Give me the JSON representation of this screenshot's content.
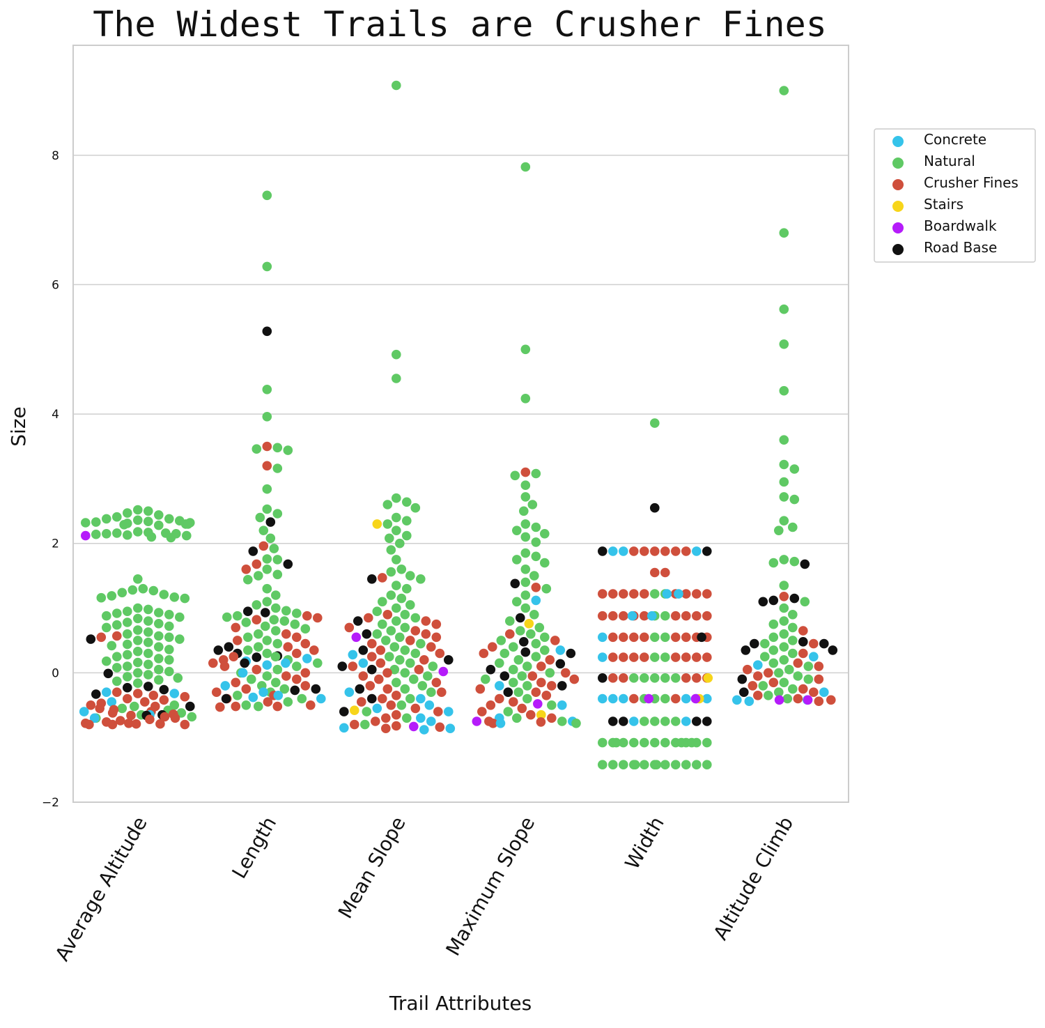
{
  "chart_data": {
    "type": "scatter",
    "subtype": "swarm",
    "title": "The Widest Trails are Crusher Fines",
    "xlabel": "Trail Attributes",
    "ylabel": "Size",
    "categories": [
      "Average Altitude",
      "Length",
      "Mean Slope",
      "Maximum Slope",
      "Width",
      "Altitude Climb"
    ],
    "ylim": [
      -2,
      9.7
    ],
    "yticks": [
      -2,
      0,
      2,
      4,
      6,
      8
    ],
    "grid": "horizontal",
    "legend_position": "right",
    "legend": [
      {
        "name": "Concrete",
        "color": "#35c3ea"
      },
      {
        "name": "Natural",
        "color": "#5fc964"
      },
      {
        "name": "Crusher Fines",
        "color": "#cf4f3c"
      },
      {
        "name": "Stairs",
        "color": "#f7d51a"
      },
      {
        "name": "Boardwalk",
        "color": "#b51cfa"
      },
      {
        "name": "Road Base",
        "color": "#111111"
      }
    ],
    "points": {
      "Average Altitude": {
        "Natural": [
          2.38,
          2.35,
          2.33,
          2.32,
          2.31,
          2.3,
          2.3,
          2.29,
          2.28,
          2.52,
          2.5,
          2.47,
          2.44,
          2.41,
          2.38,
          2.36,
          2.34,
          2.32,
          2.18,
          2.17,
          2.16,
          2.16,
          2.15,
          2.15,
          2.14,
          2.13,
          2.12,
          2.1,
          2.09,
          1.45,
          1.3,
          1.28,
          1.27,
          1.24,
          1.21,
          1.19,
          1.17,
          1.16,
          1.15,
          1.0,
          0.98,
          0.95,
          0.93,
          0.92,
          0.9,
          0.88,
          0.86,
          0.84,
          0.8,
          0.78,
          0.76,
          0.74,
          0.72,
          0.7,
          0.66,
          0.63,
          0.6,
          0.57,
          0.55,
          0.52,
          0.5,
          0.47,
          0.44,
          0.42,
          0.4,
          0.36,
          0.33,
          0.3,
          0.28,
          0.25,
          0.22,
          0.2,
          0.18,
          0.16,
          0.13,
          0.1,
          0.08,
          0.05,
          0.02,
          0.0,
          -0.03,
          -0.06,
          -0.08,
          -0.11,
          -0.13,
          -0.16,
          -0.5,
          -0.52,
          -0.55,
          -0.58,
          -0.62,
          -0.65,
          -0.68,
          -0.7
        ],
        "Crusher Fines": [
          0.57,
          0.55,
          -0.3,
          -0.32,
          -0.35,
          -0.37,
          -0.4,
          -0.42,
          -0.45,
          -0.47,
          -0.5,
          -0.52,
          -0.55,
          -0.57,
          -0.6,
          -0.62,
          -0.64,
          -0.66,
          -0.68,
          -0.7,
          -0.72,
          -0.74,
          -0.76,
          -0.78,
          -0.78,
          -0.79,
          -0.79,
          -0.8,
          -0.8,
          -0.8
        ],
        "Concrete": [
          -0.3,
          -0.32,
          -0.45,
          -0.6,
          -0.65,
          -0.7
        ],
        "Boardwalk": [
          2.12
        ],
        "Road Base": [
          0.52,
          -0.01,
          -0.21,
          -0.23,
          -0.26,
          -0.33,
          -0.52,
          -0.65,
          -0.66
        ]
      },
      "Length": {
        "Natural": [
          7.38,
          6.28,
          4.38,
          3.96,
          3.48,
          3.46,
          3.44,
          3.16,
          2.84,
          2.53,
          2.46,
          2.4,
          2.2,
          2.08,
          1.92,
          1.76,
          1.75,
          1.6,
          1.52,
          1.5,
          1.44,
          1.3,
          1.2,
          1.1,
          1.05,
          1.0,
          0.96,
          0.92,
          0.88,
          0.86,
          0.82,
          0.8,
          0.78,
          0.75,
          0.72,
          0.68,
          0.65,
          0.6,
          0.55,
          0.5,
          0.45,
          0.4,
          0.35,
          0.3,
          0.25,
          0.2,
          0.15,
          0.1,
          0.05,
          0.0,
          -0.05,
          -0.1,
          -0.15,
          -0.2,
          -0.25,
          -0.3,
          -0.35,
          -0.4,
          -0.45,
          -0.5,
          -0.52
        ],
        "Crusher Fines": [
          3.5,
          3.2,
          1.96,
          1.68,
          1.6,
          0.88,
          0.85,
          0.82,
          0.7,
          0.6,
          0.55,
          0.5,
          0.45,
          0.4,
          0.35,
          0.3,
          0.25,
          0.2,
          0.15,
          0.1,
          0.05,
          0.0,
          -0.05,
          -0.1,
          -0.15,
          -0.2,
          -0.25,
          -0.3,
          -0.35,
          -0.4,
          -0.45,
          -0.5,
          -0.52,
          -0.52,
          -0.53
        ],
        "Concrete": [
          0.22,
          0.18,
          0.15,
          0.12,
          0.0,
          -0.2,
          -0.3,
          -0.35,
          -0.38,
          -0.4
        ],
        "Road Base": [
          5.28,
          2.33,
          1.88,
          1.68,
          0.95,
          0.93,
          0.4,
          0.35,
          0.3,
          0.26,
          0.24,
          0.15,
          -0.25,
          -0.27,
          -0.4
        ]
      },
      "Mean Slope": {
        "Natural": [
          9.08,
          4.92,
          4.55,
          2.7,
          2.64,
          2.6,
          2.55,
          2.4,
          2.35,
          2.3,
          2.2,
          2.12,
          2.08,
          2.0,
          1.9,
          1.75,
          1.6,
          1.56,
          1.5,
          1.45,
          1.35,
          1.3,
          1.2,
          1.15,
          1.1,
          1.05,
          1.0,
          0.95,
          0.9,
          0.85,
          0.8,
          0.75,
          0.7,
          0.65,
          0.6,
          0.55,
          0.5,
          0.45,
          0.4,
          0.35,
          0.3,
          0.25,
          0.2,
          0.15,
          0.1,
          0.05,
          0.0,
          -0.05,
          -0.1,
          -0.15,
          -0.2,
          -0.25,
          -0.3,
          -0.4,
          -0.5,
          -0.6,
          -0.7,
          -0.8
        ],
        "Crusher Fines": [
          1.47,
          0.9,
          0.85,
          0.8,
          0.75,
          0.7,
          0.65,
          0.6,
          0.55,
          0.5,
          0.45,
          0.4,
          0.35,
          0.3,
          0.25,
          0.2,
          0.15,
          0.1,
          0.05,
          0.0,
          -0.05,
          -0.1,
          -0.15,
          -0.2,
          -0.25,
          -0.3,
          -0.35,
          -0.4,
          -0.45,
          -0.5,
          -0.55,
          -0.6,
          -0.65,
          -0.7,
          -0.75,
          -0.8,
          -0.82,
          -0.84,
          -0.86
        ],
        "Concrete": [
          0.28,
          0.15,
          -0.3,
          -0.4,
          -0.5,
          -0.55,
          -0.6,
          -0.7,
          -0.75,
          -0.85,
          -0.86,
          -0.88
        ],
        "Stairs": [
          2.3,
          -0.58
        ],
        "Boardwalk": [
          0.55,
          0.02,
          -0.83
        ],
        "Road Base": [
          1.45,
          0.8,
          0.6,
          0.35,
          0.2,
          0.1,
          0.05,
          -0.25,
          -0.4,
          -0.6
        ]
      },
      "Maximum Slope": {
        "Natural": [
          7.82,
          5.0,
          4.24,
          3.08,
          3.05,
          2.9,
          2.72,
          2.6,
          2.5,
          2.3,
          2.25,
          2.2,
          2.15,
          2.1,
          2.02,
          1.85,
          1.8,
          1.75,
          1.7,
          1.6,
          1.5,
          1.4,
          1.3,
          1.2,
          1.1,
          1.0,
          0.9,
          0.8,
          0.7,
          0.65,
          0.6,
          0.55,
          0.5,
          0.45,
          0.4,
          0.35,
          0.3,
          0.25,
          0.2,
          0.15,
          0.1,
          0.05,
          0.0,
          -0.05,
          -0.1,
          -0.15,
          -0.2,
          -0.3,
          -0.4,
          -0.5,
          -0.6,
          -0.7,
          -0.75,
          -0.78
        ],
        "Crusher Fines": [
          3.1,
          1.32,
          0.6,
          0.5,
          0.4,
          0.3,
          0.2,
          0.1,
          0.0,
          -0.05,
          -0.1,
          -0.15,
          -0.2,
          -0.25,
          -0.3,
          -0.35,
          -0.4,
          -0.45,
          -0.5,
          -0.55,
          -0.6,
          -0.65,
          -0.7,
          -0.75,
          -0.76,
          -0.78
        ],
        "Concrete": [
          1.12,
          0.35,
          -0.2,
          -0.5,
          -0.7,
          -0.75,
          -0.78
        ],
        "Stairs": [
          0.76,
          -0.65
        ],
        "Boardwalk": [
          -0.48,
          -0.75
        ],
        "Road Base": [
          1.38,
          0.85,
          0.48,
          0.32,
          0.3,
          0.14,
          0.05,
          -0.05,
          -0.2,
          -0.3
        ]
      },
      "Width": {
        "Natural": [
          3.86,
          -0.08,
          -0.08,
          -0.08,
          -0.08,
          -0.08,
          -0.4,
          -0.4,
          -0.4,
          -0.75,
          -0.75,
          -0.75,
          -0.75,
          -1.08,
          -1.08,
          -1.08,
          -1.08,
          -1.08,
          -1.08,
          -1.08,
          -1.08,
          -1.08,
          -1.08,
          -1.08,
          -1.08,
          -1.08,
          -1.08,
          -1.42,
          -1.42,
          -1.42,
          -1.42,
          -1.42,
          -1.42,
          -1.42,
          -1.42,
          -1.42,
          -1.42,
          -1.42,
          -1.42,
          -1.42,
          0.24,
          0.24,
          0.55,
          0.55,
          0.88,
          0.88,
          1.22,
          1.22
        ],
        "Crusher Fines": [
          1.88,
          1.88,
          1.88,
          1.88,
          1.88,
          1.88,
          1.55,
          1.55,
          1.22,
          1.22,
          1.22,
          1.22,
          1.22,
          1.22,
          1.22,
          1.22,
          1.22,
          0.88,
          0.88,
          0.88,
          0.88,
          0.88,
          0.88,
          0.88,
          0.88,
          0.88,
          0.55,
          0.55,
          0.55,
          0.55,
          0.55,
          0.55,
          0.55,
          0.55,
          0.24,
          0.24,
          0.24,
          0.24,
          0.24,
          0.24,
          0.24,
          0.24,
          -0.08,
          -0.08,
          -0.08,
          -0.08,
          -0.08,
          -0.4,
          -0.4
        ],
        "Concrete": [
          1.88,
          1.88,
          1.88,
          1.22,
          1.22,
          0.88,
          0.88,
          0.55,
          0.24,
          -0.4,
          -0.4,
          -0.4,
          -0.4,
          -0.4,
          -0.4,
          -0.75,
          -0.75
        ],
        "Stairs": [
          -0.08,
          -0.4
        ],
        "Boardwalk": [
          -0.4,
          -0.4
        ],
        "Road Base": [
          2.55,
          1.88,
          1.88,
          0.55,
          -0.08,
          -0.75,
          -0.75,
          -0.75,
          -0.75
        ]
      },
      "Altitude Climb": {
        "Natural": [
          9.0,
          6.8,
          5.62,
          5.08,
          4.36,
          3.6,
          3.22,
          3.15,
          2.95,
          2.72,
          2.68,
          2.35,
          2.25,
          2.2,
          1.75,
          1.72,
          1.7,
          1.35,
          1.1,
          1.0,
          0.9,
          0.8,
          0.75,
          0.7,
          0.6,
          0.55,
          0.5,
          0.45,
          0.4,
          0.35,
          0.3,
          0.25,
          0.2,
          0.15,
          0.1,
          0.05,
          0.0,
          -0.05,
          -0.1,
          -0.15,
          -0.2,
          -0.25,
          -0.3,
          -0.35,
          -0.4
        ],
        "Crusher Fines": [
          1.18,
          0.65,
          0.45,
          0.3,
          0.15,
          0.1,
          0.05,
          0.0,
          -0.05,
          -0.1,
          -0.15,
          -0.2,
          -0.25,
          -0.3,
          -0.35,
          -0.4,
          -0.42,
          -0.44
        ],
        "Concrete": [
          0.25,
          0.12,
          -0.3,
          -0.42,
          -0.42,
          -0.44
        ],
        "Boardwalk": [
          -0.42,
          -0.42
        ],
        "Road Base": [
          1.68,
          1.15,
          1.12,
          1.1,
          0.48,
          0.45,
          0.45,
          0.35,
          0.35,
          -0.1,
          -0.3
        ]
      }
    }
  }
}
